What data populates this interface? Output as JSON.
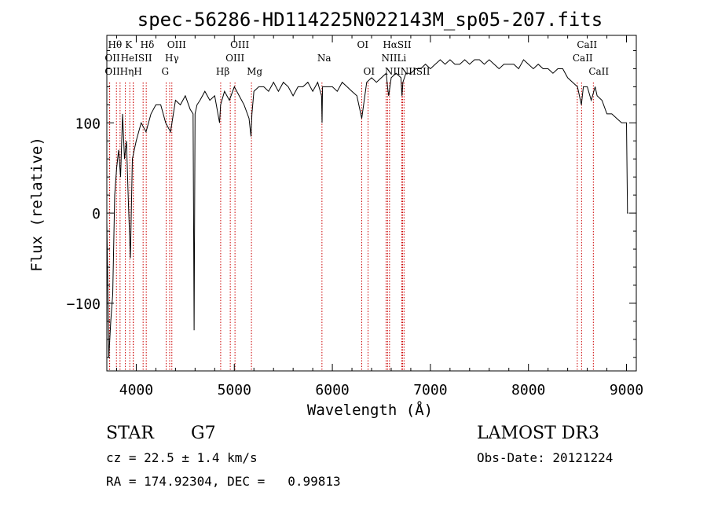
{
  "chart_data": {
    "type": "line",
    "title": "spec-56286-HD114225N022143M_sp05-207.fits",
    "xlabel": "Wavelength (Å)",
    "ylabel": "Flux (relative)",
    "xlim": [
      3700,
      9100
    ],
    "ylim": [
      -175,
      197
    ],
    "xticks": [
      4000,
      5000,
      6000,
      7000,
      8000,
      9000
    ],
    "yticks": [
      -100,
      0,
      100
    ],
    "xtick_labels": [
      "4000",
      "5000",
      "6000",
      "7000",
      "8000",
      "9000"
    ],
    "ytick_labels": [
      "−100",
      "0",
      "100"
    ],
    "grid": false,
    "series": [
      {
        "name": "flux",
        "x": [
          3700,
          3720,
          3740,
          3760,
          3780,
          3800,
          3820,
          3840,
          3860,
          3880,
          3900,
          3920,
          3940,
          3960,
          3980,
          4000,
          4050,
          4100,
          4150,
          4200,
          4250,
          4300,
          4350,
          4400,
          4450,
          4500,
          4550,
          4580,
          4590,
          4600,
          4620,
          4650,
          4700,
          4750,
          4800,
          4850,
          4860,
          4900,
          4950,
          5000,
          5050,
          5100,
          5150,
          5170,
          5180,
          5200,
          5250,
          5300,
          5350,
          5400,
          5450,
          5500,
          5550,
          5600,
          5650,
          5700,
          5750,
          5800,
          5850,
          5890,
          5895,
          5900,
          5950,
          6000,
          6050,
          6100,
          6150,
          6200,
          6250,
          6300,
          6350,
          6400,
          6450,
          6500,
          6550,
          6563,
          6575,
          6600,
          6650,
          6700,
          6710,
          6720,
          6750,
          6800,
          6850,
          6900,
          6950,
          7000,
          7050,
          7100,
          7150,
          7200,
          7250,
          7300,
          7350,
          7400,
          7450,
          7500,
          7550,
          7600,
          7650,
          7700,
          7750,
          7800,
          7850,
          7900,
          7950,
          8000,
          8050,
          8100,
          8150,
          8200,
          8250,
          8300,
          8350,
          8400,
          8450,
          8500,
          8540,
          8560,
          8600,
          8640,
          8680,
          8700,
          8750,
          8800,
          8850,
          8900,
          8950,
          9000,
          9010,
          9020
        ],
        "values": [
          -10,
          -160,
          -120,
          -90,
          20,
          50,
          70,
          40,
          110,
          60,
          80,
          10,
          -50,
          60,
          70,
          80,
          100,
          90,
          110,
          120,
          120,
          100,
          90,
          125,
          120,
          130,
          115,
          110,
          -130,
          110,
          120,
          125,
          135,
          125,
          130,
          100,
          120,
          135,
          125,
          140,
          130,
          120,
          105,
          85,
          110,
          135,
          140,
          140,
          135,
          145,
          135,
          145,
          140,
          130,
          140,
          140,
          145,
          135,
          145,
          130,
          100,
          140,
          140,
          140,
          135,
          145,
          140,
          135,
          130,
          105,
          145,
          150,
          145,
          150,
          155,
          140,
          130,
          150,
          155,
          150,
          130,
          145,
          155,
          155,
          160,
          160,
          165,
          160,
          165,
          170,
          165,
          170,
          165,
          165,
          170,
          165,
          170,
          170,
          165,
          170,
          165,
          160,
          165,
          165,
          165,
          160,
          170,
          165,
          160,
          165,
          160,
          160,
          155,
          160,
          160,
          150,
          145,
          140,
          120,
          140,
          140,
          125,
          140,
          130,
          125,
          110,
          110,
          105,
          100,
          100,
          0,
          0
        ]
      }
    ],
    "lines": [
      {
        "label": "Hθ",
        "x": 3798
      },
      {
        "label": "OII",
        "x": 3727
      },
      {
        "label": "OII",
        "x": 3729
      },
      {
        "label": "K",
        "x": 3934
      },
      {
        "label": "H",
        "x": 3969
      },
      {
        "label": "Hε",
        "x": 3970
      },
      {
        "label": "Hη",
        "x": 3835
      },
      {
        "label": "HeI",
        "x": 3889
      },
      {
        "label": "SII",
        "x": 4070
      },
      {
        "label": "Hδ",
        "x": 4102
      },
      {
        "label": "OIII",
        "x": 4363
      },
      {
        "label": "Hγ",
        "x": 4341
      },
      {
        "label": "G",
        "x": 4305
      },
      {
        "label": "Hβ",
        "x": 4861
      },
      {
        "label": "OIII",
        "x": 4959
      },
      {
        "label": "OIII",
        "x": 5007
      },
      {
        "label": "Mg",
        "x": 5175
      },
      {
        "label": "Na",
        "x": 5894
      },
      {
        "label": "OI",
        "x": 6300
      },
      {
        "label": "OI",
        "x": 6364
      },
      {
        "label": "Hα",
        "x": 6563
      },
      {
        "label": "NII",
        "x": 6548
      },
      {
        "label": "NII",
        "x": 6583
      },
      {
        "label": "Li",
        "x": 6708
      },
      {
        "label": "SII",
        "x": 6716
      },
      {
        "label": "SII",
        "x": 6731
      },
      {
        "label": "CaII",
        "x": 8498
      },
      {
        "label": "CaII",
        "x": 8542
      },
      {
        "label": "CaII",
        "x": 8662
      }
    ],
    "line_labels": [
      {
        "text": "Hθ",
        "x": 3760,
        "row": 1
      },
      {
        "text": "K",
        "x": 3934,
        "row": 1
      },
      {
        "text": "Hδ",
        "x": 4090,
        "row": 1
      },
      {
        "text": "OIII",
        "x": 4363,
        "row": 1
      },
      {
        "text": "OIII",
        "x": 5007,
        "row": 1
      },
      {
        "text": "OI",
        "x": 6300,
        "row": 1
      },
      {
        "text": "HαSII",
        "x": 6563,
        "row": 1
      },
      {
        "text": "CaII",
        "x": 8542,
        "row": 1
      },
      {
        "text": "OII",
        "x": 3727,
        "row": 2
      },
      {
        "text": "HeISII",
        "x": 3889,
        "row": 2
      },
      {
        "text": "Hγ",
        "x": 4341,
        "row": 2
      },
      {
        "text": "OIII",
        "x": 4959,
        "row": 2
      },
      {
        "text": "Na",
        "x": 5894,
        "row": 2
      },
      {
        "text": "NII",
        "x": 6548,
        "row": 2
      },
      {
        "text": "Li",
        "x": 6708,
        "row": 2
      },
      {
        "text": "CaII",
        "x": 8498,
        "row": 2
      },
      {
        "text": "OIIHηH",
        "x": 3727,
        "row": 3
      },
      {
        "text": "G",
        "x": 4305,
        "row": 3
      },
      {
        "text": "Hβ",
        "x": 4861,
        "row": 3
      },
      {
        "text": "Mg",
        "x": 5175,
        "row": 3
      },
      {
        "text": "OI",
        "x": 6364,
        "row": 3
      },
      {
        "text": "NIINIISII",
        "x": 6583,
        "row": 3
      },
      {
        "text": "CaII",
        "x": 8662,
        "row": 3
      }
    ]
  },
  "footer": {
    "object_class": "STAR",
    "subclass": "G7",
    "survey": "LAMOST DR3",
    "redshift": "cz = 22.5 ± 1.4 km/s",
    "obs_date": "Obs-Date: 20121224",
    "coords": "RA = 174.92304, DEC =   0.99813"
  },
  "colors": {
    "spectrum": "#000000",
    "line_markers": "#cc0000",
    "axes": "#000000"
  }
}
